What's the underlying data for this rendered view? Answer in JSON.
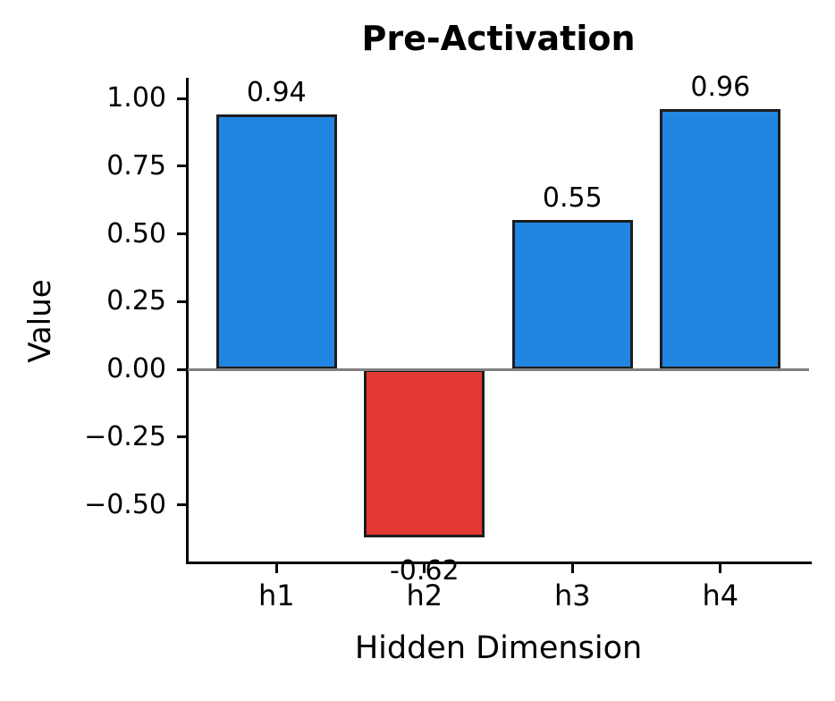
{
  "chart_data": {
    "type": "bar",
    "title": "Pre-Activation",
    "xlabel": "Hidden Dimension",
    "ylabel": "Value",
    "categories": [
      "h1",
      "h2",
      "h3",
      "h4"
    ],
    "values": [
      0.94,
      -0.62,
      0.55,
      0.96
    ],
    "bar_labels": [
      "0.94",
      "-0.62",
      "0.55",
      "0.96"
    ],
    "yticks": [
      1.0,
      0.75,
      0.5,
      0.25,
      0.0,
      -0.25,
      -0.5
    ],
    "ytick_labels": [
      "1.00",
      "0.75",
      "0.50",
      "0.25",
      "0.00",
      "−0.25",
      "−0.50"
    ],
    "ylim": [
      -0.72,
      1.07
    ],
    "grid": false,
    "legend": false,
    "zero_line": true,
    "colors": {
      "positive_bar": "#2186E2",
      "negative_bar": "#E23933",
      "bar_edge": "#1d1d1d",
      "zero_line": "#808080",
      "axis": "#000000",
      "text": "#000000"
    }
  }
}
